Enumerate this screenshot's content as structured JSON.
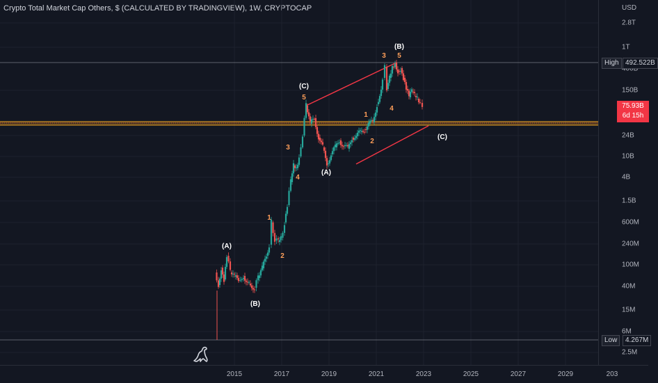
{
  "header": {
    "title": "Crypto Total Market Cap Others, $ (CALCULATED BY TRADINGVIEW), 1W, CRYPTOCAP"
  },
  "price_axis": {
    "currency": "USD",
    "ticks": [
      "2.8T",
      "1T",
      "400B",
      "150B",
      "24B",
      "10B",
      "4B",
      "1.5B",
      "600M",
      "240M",
      "100M",
      "40M",
      "15M",
      "6M",
      "2.5M"
    ],
    "high": {
      "label": "High",
      "value": "492.522B"
    },
    "low": {
      "label": "Low",
      "value": "4.267M"
    },
    "last": {
      "value": "75.93B",
      "countdown": "6d 15h"
    }
  },
  "time_axis": {
    "ticks": [
      "2015",
      "2017",
      "2019",
      "2021",
      "2023",
      "2025",
      "2027",
      "2029",
      "203"
    ]
  },
  "wave_labels": [
    "(A)",
    "(B)",
    "1",
    "2",
    "3",
    "4",
    "(C)",
    "5",
    "(A)",
    "1",
    "2",
    "3",
    "5",
    "(B)",
    "4",
    "(C)"
  ],
  "colors": {
    "background": "#131722",
    "up": "#26a69a",
    "down": "#ef5350",
    "wedge": "#f23645",
    "support": "#f5a623",
    "impulse_label": "#ff9f5a"
  },
  "logo": {
    "icon": "tradingview-dino-icon"
  }
}
